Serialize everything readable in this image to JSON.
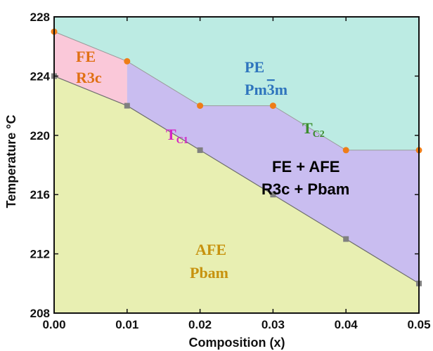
{
  "chart_data": {
    "type": "area",
    "title": "",
    "xlabel": "Composition (x)",
    "ylabel": "Temperature °C",
    "xlim": [
      0.0,
      0.05
    ],
    "ylim": [
      208,
      228
    ],
    "x_ticks": [
      "0.00",
      "0.01",
      "0.02",
      "0.03",
      "0.04",
      "0.05"
    ],
    "y_ticks": [
      "208",
      "212",
      "216",
      "220",
      "224",
      "228"
    ],
    "grid": false,
    "series": [
      {
        "name": "T_C2",
        "marker": "circle",
        "color": "#ee7d18",
        "points": [
          [
            0.0,
            227
          ],
          [
            0.01,
            225
          ],
          [
            0.02,
            222
          ],
          [
            0.03,
            222
          ],
          [
            0.04,
            219
          ],
          [
            0.05,
            219
          ]
        ]
      },
      {
        "name": "T_C1",
        "marker": "square",
        "color": "#808080",
        "points": [
          [
            0.0,
            224
          ],
          [
            0.01,
            222
          ],
          [
            0.02,
            219
          ],
          [
            0.03,
            216
          ],
          [
            0.04,
            213
          ],
          [
            0.05,
            210
          ]
        ]
      }
    ],
    "fe_boundary_x": 0.01,
    "regions": [
      {
        "name": "PE",
        "phase": "Pm3m",
        "color": "#bcebe3",
        "text_color": "#2e74bd"
      },
      {
        "name": "FE",
        "phase": "R3c",
        "color": "#fac8d9",
        "text_color": "#e07014"
      },
      {
        "name": "FE + AFE",
        "phase": "R3c + Pbam",
        "color": "#c9bdf0",
        "text_color": "#000000"
      },
      {
        "name": "AFE",
        "phase": "Pbam",
        "color": "#e8efb2",
        "text_color": "#c7920e"
      }
    ],
    "annotations": [
      {
        "base": "T",
        "sub": "C1",
        "color": "#d425c4"
      },
      {
        "base": "T",
        "sub": "C2",
        "color": "#3b8c2c"
      }
    ]
  }
}
